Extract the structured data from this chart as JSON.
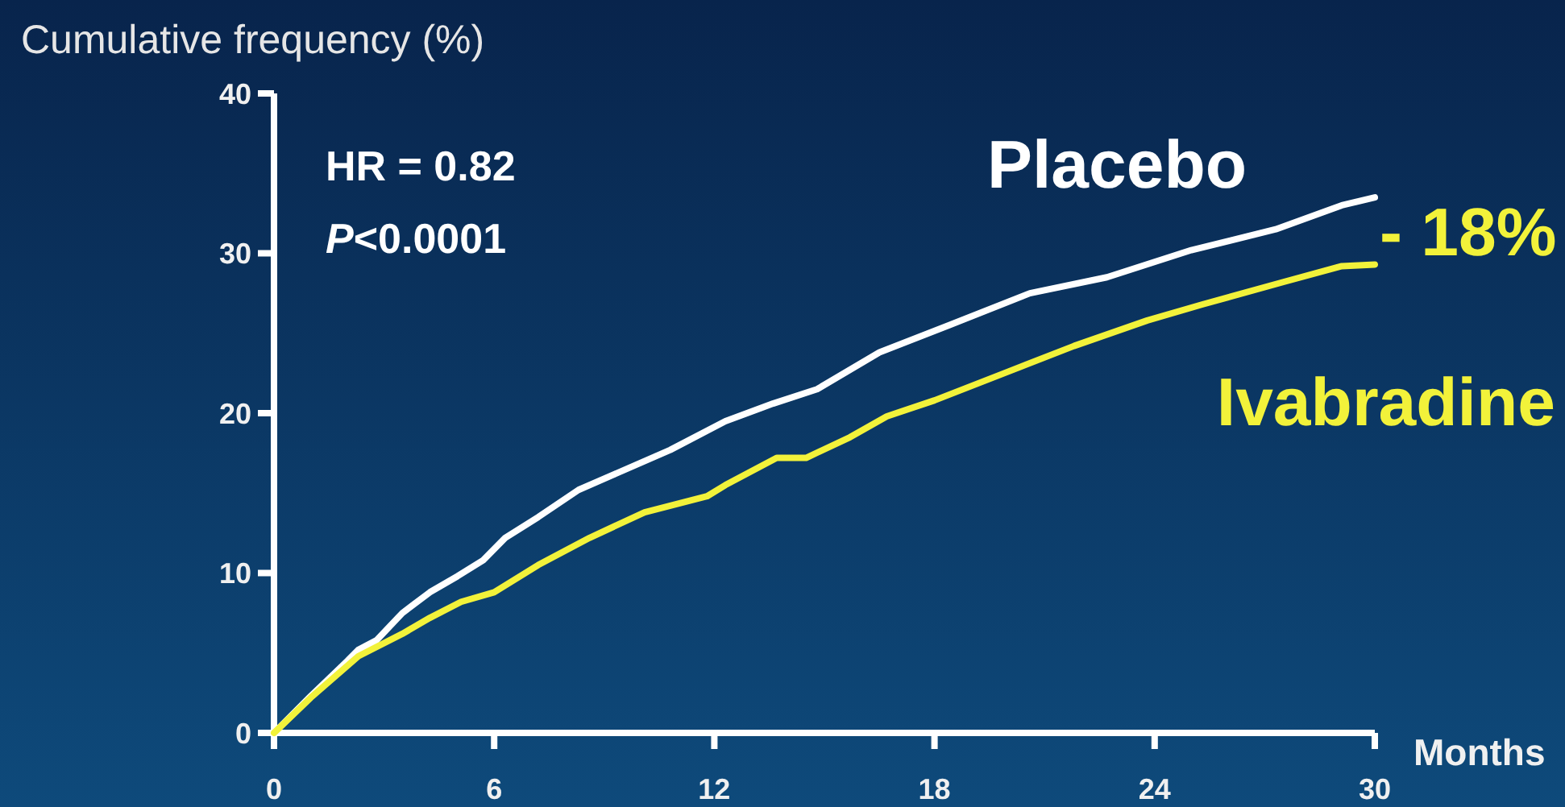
{
  "chart_data": {
    "type": "line",
    "ylabel": "Cumulative frequency (%)",
    "xlabel": "Months",
    "xlim": [
      0,
      30
    ],
    "xticks": [
      0,
      6,
      12,
      18,
      24,
      30
    ],
    "ylim": [
      0,
      40
    ],
    "yticks": [
      0,
      10,
      20,
      30,
      40
    ],
    "annotations": [
      "HR = 0.82",
      "P<0.0001",
      "- 18%"
    ],
    "series": [
      {
        "name": "Placebo",
        "color": "#ffffff",
        "x": [
          0,
          1,
          2,
          2.3,
          2.8,
          3.5,
          4.25,
          5,
          5.7,
          6.3,
          7.2,
          8.3,
          9.3,
          10.8,
          12.3,
          13.6,
          14.8,
          16.5,
          18.4,
          20.6,
          22.7,
          25,
          27.3,
          29.1,
          30
        ],
        "values": [
          0,
          2.3,
          4.5,
          5.2,
          5.8,
          7.5,
          8.8,
          9.8,
          10.8,
          12.2,
          13.5,
          15.2,
          16.2,
          17.7,
          19.5,
          20.6,
          21.5,
          23.8,
          25.5,
          27.5,
          28.5,
          30.2,
          31.5,
          33,
          33.5
        ]
      },
      {
        "name": "Ivabradine",
        "color": "#f2f23a",
        "x": [
          0,
          1,
          2.3,
          3.5,
          4.25,
          5.1,
          6,
          7.2,
          8.6,
          10.1,
          11.8,
          12.3,
          13.7,
          14.5,
          15.7,
          16.7,
          18,
          19.9,
          21.8,
          23.8,
          25.3,
          27.5,
          29.1,
          30
        ],
        "values": [
          0,
          2.2,
          4.8,
          6.2,
          7.2,
          8.2,
          8.8,
          10.5,
          12.2,
          13.8,
          14.8,
          15.5,
          17.2,
          17.2,
          18.5,
          19.8,
          20.8,
          22.5,
          24.2,
          25.8,
          26.8,
          28.2,
          29.2,
          29.3
        ]
      }
    ]
  }
}
